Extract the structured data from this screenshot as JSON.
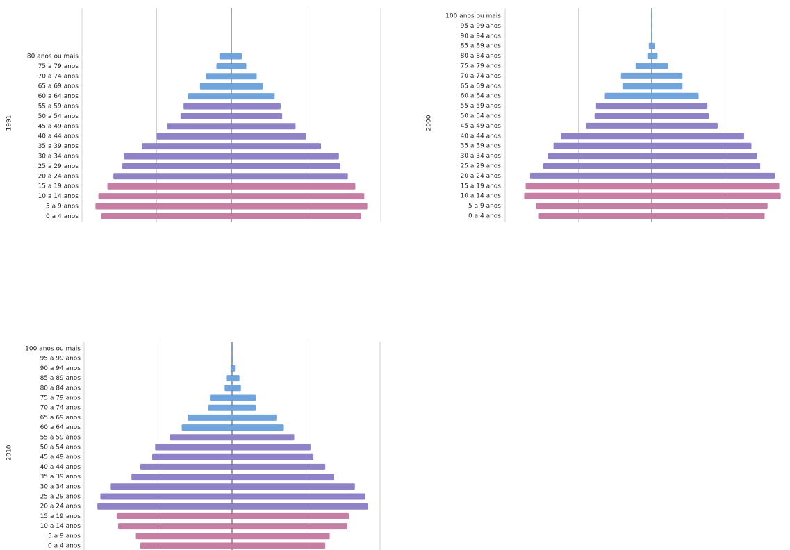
{
  "colors": {
    "young": "#c77ea4",
    "adult": "#8f82c6",
    "elderly": "#6fa5dc",
    "grid": "#d0d0d0",
    "axis": "#444444"
  },
  "chart_data": [
    {
      "type": "bar",
      "orientation": "horizontal-pyramid",
      "year_label": "1991",
      "categories": [
        "0 a 4 anos",
        "5 a 9 anos",
        "10 a 14 anos",
        "15 a 19 anos",
        "20 a 24 anos",
        "25 a 29 anos",
        "30 a 34 anos",
        "35 a 39 anos",
        "40 a 44 anos",
        "45 a 49 anos",
        "50 a 54 anos",
        "55 a 59 anos",
        "60 a 64 anos",
        "65 a 69 anos",
        "70 a 74 anos",
        "75 a 79 anos",
        "80 anos ou mais"
      ],
      "xlim": [
        -1.0,
        1.0
      ],
      "series": [
        {
          "values": [
            -0.87,
            -0.91,
            -0.89,
            -0.83,
            -0.79,
            -0.73,
            -0.72,
            -0.6,
            -0.5,
            -0.43,
            -0.34,
            -0.32,
            -0.29,
            -0.21,
            -0.17,
            -0.1,
            -0.08
          ]
        },
        {
          "values": [
            0.87,
            0.91,
            0.89,
            0.83,
            0.78,
            0.73,
            0.72,
            0.6,
            0.5,
            0.43,
            0.34,
            0.33,
            0.29,
            0.21,
            0.17,
            0.1,
            0.07
          ]
        }
      ]
    },
    {
      "type": "bar",
      "orientation": "horizontal-pyramid",
      "year_label": "2000",
      "categories": [
        "0 a 4 anos",
        "5 a 9 anos",
        "10 a 14 anos",
        "15 a 19 anos",
        "20 a 24 anos",
        "25 a 29 anos",
        "30 a 34 anos",
        "35 a 39 anos",
        "40 a 44 anos",
        "45 a 49 anos",
        "50 a 54 anos",
        "55 a 59 anos",
        "60 a 64 anos",
        "65 a 69 anos",
        "70 a 74 anos",
        "75 a 79 anos",
        "80 a 84 anos",
        "85 a 89 anos",
        "90 a 94 anos",
        "95 a 99 anos",
        "100 anos ou mais"
      ],
      "xlim": [
        -1.0,
        1.0
      ],
      "series": [
        {
          "values": [
            -0.77,
            -0.79,
            -0.87,
            -0.86,
            -0.83,
            -0.74,
            -0.71,
            -0.67,
            -0.62,
            -0.45,
            -0.39,
            -0.38,
            -0.32,
            -0.2,
            -0.21,
            -0.11,
            -0.03,
            -0.02,
            -0.005,
            -0.003,
            -0.002
          ]
        },
        {
          "values": [
            0.77,
            0.79,
            0.88,
            0.87,
            0.84,
            0.74,
            0.72,
            0.68,
            0.63,
            0.45,
            0.39,
            0.38,
            0.32,
            0.21,
            0.21,
            0.11,
            0.04,
            0.02,
            0.005,
            0.003,
            0.002
          ]
        }
      ]
    },
    {
      "type": "bar",
      "orientation": "horizontal-pyramid",
      "year_label": "2010",
      "categories": [
        "0 a 4 anos",
        "5 a 9 anos",
        "10 a 14 anos",
        "15 a 19 anos",
        "20 a 24 anos",
        "25 a 29 anos",
        "30 a 34 anos",
        "35 a 39 anos",
        "40 a 44 anos",
        "45 a 49 anos",
        "50 a 54 anos",
        "55 a 59 anos",
        "60 a 64 anos",
        "65 a 69 anos",
        "70 a 74 anos",
        "75 a 79 anos",
        "80 a 84 anos",
        "85 a 89 anos",
        "90 a 94 anos",
        "95 a 99 anos",
        "100 anos ou mais"
      ],
      "xlim": [
        -1.0,
        1.0
      ],
      "series": [
        {
          "values": [
            -0.62,
            -0.65,
            -0.77,
            -0.78,
            -0.91,
            -0.89,
            -0.82,
            -0.68,
            -0.62,
            -0.54,
            -0.52,
            -0.42,
            -0.34,
            -0.3,
            -0.16,
            -0.15,
            -0.05,
            -0.04,
            -0.01,
            -0.005,
            -0.003
          ]
        },
        {
          "values": [
            0.63,
            0.66,
            0.78,
            0.79,
            0.92,
            0.9,
            0.83,
            0.69,
            0.63,
            0.55,
            0.53,
            0.42,
            0.35,
            0.3,
            0.16,
            0.16,
            0.06,
            0.05,
            0.02,
            0.005,
            0.003
          ]
        }
      ]
    }
  ]
}
